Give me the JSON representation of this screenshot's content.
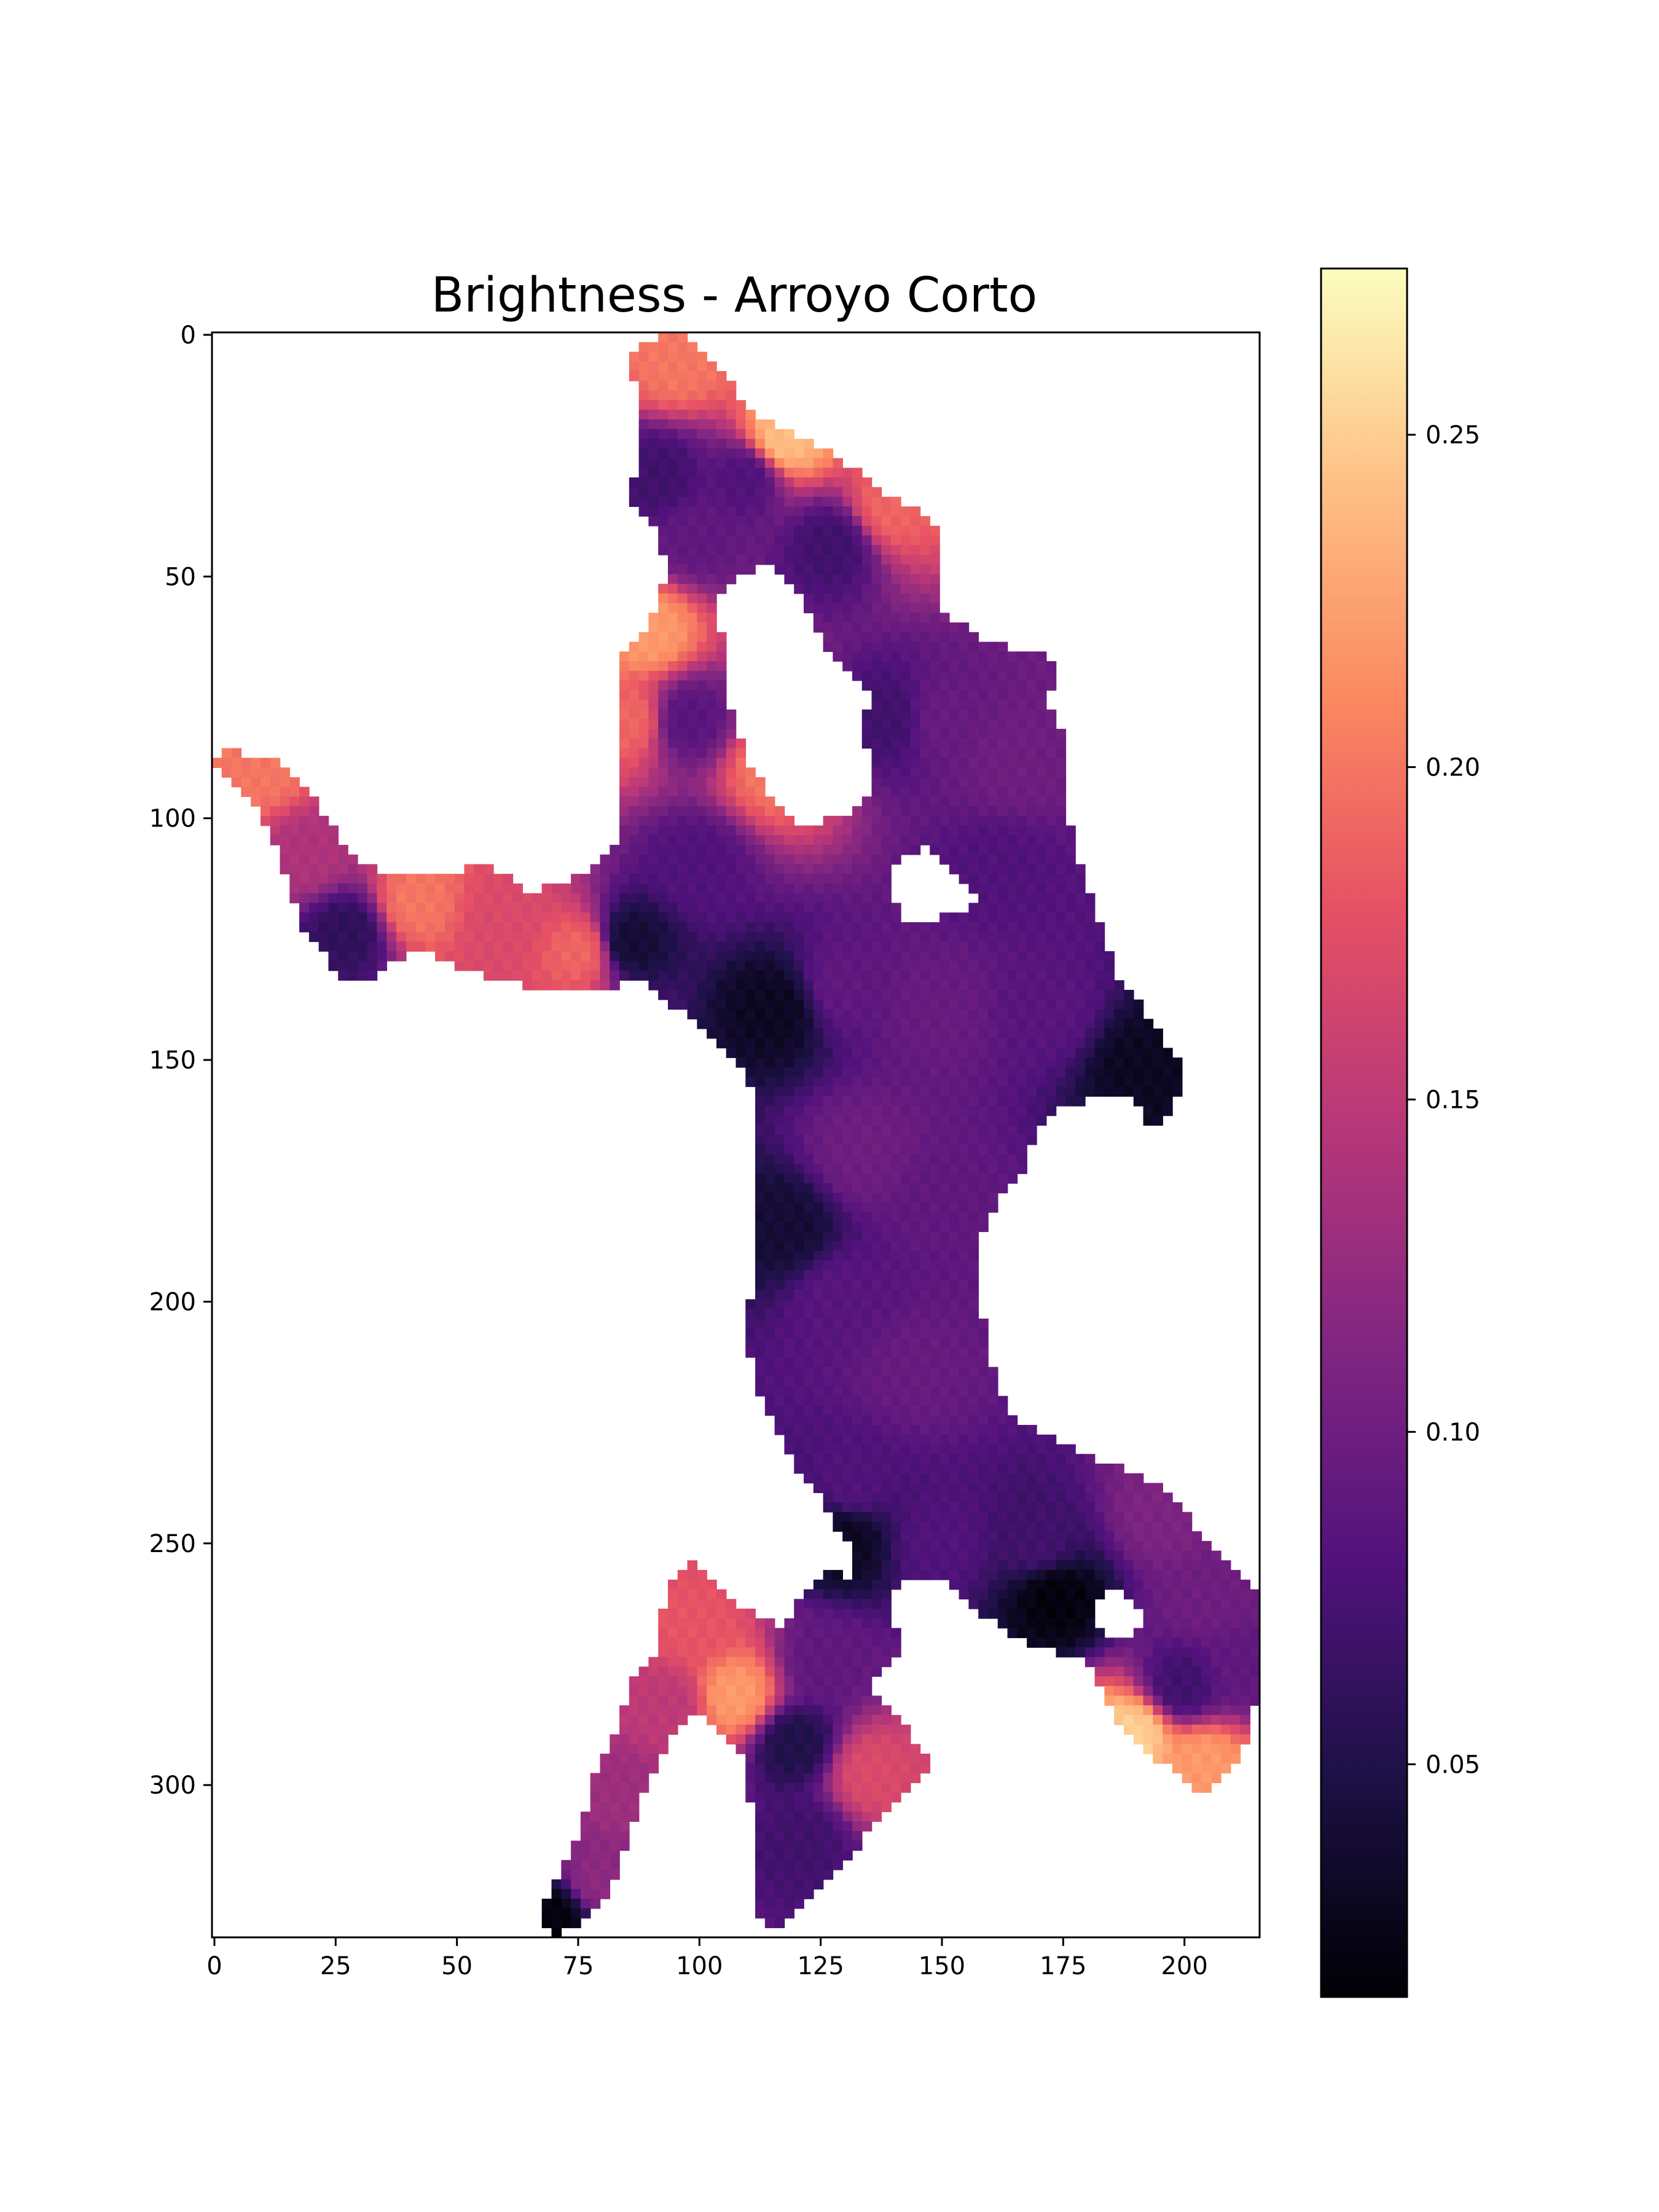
{
  "chart_data": {
    "type": "heatmap",
    "title": "Brightness - Arroyo Corto",
    "xlabel": "",
    "ylabel": "",
    "colormap": "magma",
    "grid": false,
    "xlim": [
      0,
      216
    ],
    "ylim": [
      332,
      0
    ],
    "x_ticks": [
      0,
      25,
      50,
      75,
      100,
      125,
      150,
      175,
      200
    ],
    "y_ticks": [
      0,
      50,
      100,
      150,
      200,
      250,
      300
    ],
    "colorbar": {
      "range": [
        0.015,
        0.275
      ],
      "ticks": [
        0.05,
        0.1,
        0.15,
        0.2,
        0.25
      ],
      "tick_labels": [
        "0.05",
        "0.10",
        "0.15",
        "0.20",
        "0.25"
      ],
      "position": "right"
    },
    "region_outline": [
      [
        86,
        5
      ],
      [
        92,
        1
      ],
      [
        98,
        0
      ],
      [
        104,
        6
      ],
      [
        108,
        12
      ],
      [
        113,
        18
      ],
      [
        118,
        20
      ],
      [
        126,
        24
      ],
      [
        132,
        28
      ],
      [
        140,
        34
      ],
      [
        148,
        38
      ],
      [
        151,
        46
      ],
      [
        151,
        58
      ],
      [
        160,
        64
      ],
      [
        170,
        66
      ],
      [
        175,
        68
      ],
      [
        172,
        76
      ],
      [
        175,
        82
      ],
      [
        176,
        96
      ],
      [
        178,
        108
      ],
      [
        182,
        118
      ],
      [
        184,
        124
      ],
      [
        187,
        134
      ],
      [
        192,
        140
      ],
      [
        196,
        146
      ],
      [
        199,
        150
      ],
      [
        200,
        156
      ],
      [
        198,
        162
      ],
      [
        193,
        164
      ],
      [
        190,
        158
      ],
      [
        186,
        158
      ],
      [
        176,
        160
      ],
      [
        170,
        164
      ],
      [
        168,
        172
      ],
      [
        163,
        178
      ],
      [
        159,
        186
      ],
      [
        158,
        196
      ],
      [
        159,
        204
      ],
      [
        161,
        214
      ],
      [
        164,
        224
      ],
      [
        172,
        228
      ],
      [
        180,
        232
      ],
      [
        190,
        236
      ],
      [
        198,
        240
      ],
      [
        202,
        246
      ],
      [
        206,
        252
      ],
      [
        212,
        256
      ],
      [
        216,
        262
      ],
      [
        216,
        280
      ],
      [
        213,
        292
      ],
      [
        208,
        300
      ],
      [
        203,
        302
      ],
      [
        196,
        296
      ],
      [
        190,
        292
      ],
      [
        185,
        284
      ],
      [
        180,
        274
      ],
      [
        170,
        272
      ],
      [
        160,
        266
      ],
      [
        152,
        258
      ],
      [
        142,
        258
      ],
      [
        140,
        262
      ],
      [
        142,
        272
      ],
      [
        136,
        280
      ],
      [
        144,
        290
      ],
      [
        148,
        296
      ],
      [
        144,
        302
      ],
      [
        138,
        306
      ],
      [
        134,
        312
      ],
      [
        128,
        320
      ],
      [
        120,
        328
      ],
      [
        116,
        332
      ],
      [
        112,
        326
      ],
      [
        112,
        310
      ],
      [
        110,
        296
      ],
      [
        105,
        290
      ],
      [
        100,
        286
      ],
      [
        94,
        292
      ],
      [
        90,
        300
      ],
      [
        86,
        312
      ],
      [
        82,
        322
      ],
      [
        76,
        330
      ],
      [
        70,
        332
      ],
      [
        68,
        326
      ],
      [
        72,
        318
      ],
      [
        76,
        310
      ],
      [
        78,
        302
      ],
      [
        80,
        296
      ],
      [
        84,
        288
      ],
      [
        86,
        280
      ],
      [
        92,
        272
      ],
      [
        94,
        258
      ],
      [
        100,
        254
      ],
      [
        104,
        258
      ],
      [
        110,
        264
      ],
      [
        118,
        268
      ],
      [
        124,
        258
      ],
      [
        128,
        256
      ],
      [
        132,
        258
      ],
      [
        133,
        254
      ],
      [
        128,
        246
      ],
      [
        124,
        238
      ],
      [
        120,
        234
      ],
      [
        116,
        226
      ],
      [
        112,
        218
      ],
      [
        110,
        206
      ],
      [
        112,
        196
      ],
      [
        112,
        182
      ],
      [
        112,
        168
      ],
      [
        112,
        160
      ],
      [
        110,
        152
      ],
      [
        104,
        146
      ],
      [
        96,
        140
      ],
      [
        88,
        134
      ],
      [
        82,
        136
      ],
      [
        70,
        136
      ],
      [
        60,
        134
      ],
      [
        52,
        132
      ],
      [
        44,
        128
      ],
      [
        38,
        130
      ],
      [
        32,
        134
      ],
      [
        28,
        134
      ],
      [
        24,
        130
      ],
      [
        18,
        122
      ],
      [
        16,
        114
      ],
      [
        12,
        104
      ],
      [
        8,
        96
      ],
      [
        0,
        90
      ],
      [
        2,
        86
      ],
      [
        12,
        88
      ],
      [
        18,
        92
      ],
      [
        22,
        98
      ],
      [
        26,
        104
      ],
      [
        32,
        110
      ],
      [
        38,
        112
      ],
      [
        50,
        112
      ],
      [
        56,
        110
      ],
      [
        62,
        112
      ],
      [
        66,
        116
      ],
      [
        72,
        114
      ],
      [
        78,
        112
      ],
      [
        84,
        106
      ],
      [
        84,
        98
      ],
      [
        85,
        84
      ],
      [
        84,
        70
      ],
      [
        86,
        64
      ],
      [
        90,
        62
      ],
      [
        92,
        56
      ],
      [
        94,
        48
      ],
      [
        92,
        42
      ],
      [
        86,
        34
      ],
      [
        88,
        26
      ],
      [
        88,
        14
      ]
    ],
    "hole_outlines": [
      [
        [
          104,
          56
        ],
        [
          106,
          52
        ],
        [
          110,
          50
        ],
        [
          114,
          48
        ],
        [
          118,
          50
        ],
        [
          122,
          56
        ],
        [
          126,
          64
        ],
        [
          130,
          70
        ],
        [
          136,
          74
        ],
        [
          134,
          82
        ],
        [
          136,
          88
        ],
        [
          136,
          96
        ],
        [
          130,
          100
        ],
        [
          122,
          102
        ],
        [
          118,
          100
        ],
        [
          114,
          94
        ],
        [
          110,
          88
        ],
        [
          107,
          78
        ],
        [
          106,
          68
        ]
      ],
      [
        [
          140,
          112
        ],
        [
          144,
          108
        ],
        [
          148,
          106
        ],
        [
          152,
          110
        ],
        [
          156,
          114
        ],
        [
          158,
          118
        ],
        [
          154,
          120
        ],
        [
          148,
          122
        ],
        [
          142,
          122
        ]
      ],
      [
        [
          182,
          262
        ],
        [
          186,
          260
        ],
        [
          190,
          262
        ],
        [
          192,
          266
        ],
        [
          189,
          270
        ],
        [
          184,
          270
        ],
        [
          181,
          266
        ]
      ]
    ],
    "intensity_samples": [
      {
        "x": 96,
        "y": 6,
        "value": 0.2
      },
      {
        "x": 118,
        "y": 22,
        "value": 0.24
      },
      {
        "x": 140,
        "y": 36,
        "value": 0.19
      },
      {
        "x": 92,
        "y": 30,
        "value": 0.07
      },
      {
        "x": 110,
        "y": 30,
        "value": 0.08
      },
      {
        "x": 100,
        "y": 42,
        "value": 0.09
      },
      {
        "x": 90,
        "y": 62,
        "value": 0.22
      },
      {
        "x": 86,
        "y": 80,
        "value": 0.19
      },
      {
        "x": 98,
        "y": 80,
        "value": 0.085
      },
      {
        "x": 116,
        "y": 90,
        "value": 0.2
      },
      {
        "x": 128,
        "y": 44,
        "value": 0.07
      },
      {
        "x": 140,
        "y": 80,
        "value": 0.07
      },
      {
        "x": 150,
        "y": 80,
        "value": 0.095
      },
      {
        "x": 165,
        "y": 90,
        "value": 0.1
      },
      {
        "x": 162,
        "y": 110,
        "value": 0.08
      },
      {
        "x": 10,
        "y": 90,
        "value": 0.2
      },
      {
        "x": 20,
        "y": 108,
        "value": 0.14
      },
      {
        "x": 28,
        "y": 124,
        "value": 0.06
      },
      {
        "x": 42,
        "y": 118,
        "value": 0.2
      },
      {
        "x": 60,
        "y": 122,
        "value": 0.17
      },
      {
        "x": 76,
        "y": 128,
        "value": 0.19
      },
      {
        "x": 86,
        "y": 126,
        "value": 0.04
      },
      {
        "x": 100,
        "y": 110,
        "value": 0.08
      },
      {
        "x": 116,
        "y": 140,
        "value": 0.03
      },
      {
        "x": 130,
        "y": 135,
        "value": 0.09
      },
      {
        "x": 150,
        "y": 140,
        "value": 0.095
      },
      {
        "x": 172,
        "y": 140,
        "value": 0.085
      },
      {
        "x": 192,
        "y": 152,
        "value": 0.03
      },
      {
        "x": 134,
        "y": 170,
        "value": 0.1
      },
      {
        "x": 150,
        "y": 180,
        "value": 0.09
      },
      {
        "x": 118,
        "y": 185,
        "value": 0.04
      },
      {
        "x": 130,
        "y": 200,
        "value": 0.085
      },
      {
        "x": 145,
        "y": 215,
        "value": 0.095
      },
      {
        "x": 132,
        "y": 238,
        "value": 0.08
      },
      {
        "x": 130,
        "y": 250,
        "value": 0.03
      },
      {
        "x": 150,
        "y": 250,
        "value": 0.08
      },
      {
        "x": 170,
        "y": 250,
        "value": 0.07
      },
      {
        "x": 174,
        "y": 262,
        "value": 0.02
      },
      {
        "x": 196,
        "y": 244,
        "value": 0.11
      },
      {
        "x": 206,
        "y": 262,
        "value": 0.1
      },
      {
        "x": 190,
        "y": 290,
        "value": 0.25
      },
      {
        "x": 204,
        "y": 296,
        "value": 0.22
      },
      {
        "x": 200,
        "y": 280,
        "value": 0.07
      },
      {
        "x": 212,
        "y": 276,
        "value": 0.09
      },
      {
        "x": 100,
        "y": 268,
        "value": 0.18
      },
      {
        "x": 108,
        "y": 282,
        "value": 0.22
      },
      {
        "x": 94,
        "y": 284,
        "value": 0.15
      },
      {
        "x": 120,
        "y": 292,
        "value": 0.05
      },
      {
        "x": 126,
        "y": 275,
        "value": 0.09
      },
      {
        "x": 136,
        "y": 298,
        "value": 0.17
      },
      {
        "x": 122,
        "y": 312,
        "value": 0.07
      },
      {
        "x": 84,
        "y": 302,
        "value": 0.13
      },
      {
        "x": 80,
        "y": 320,
        "value": 0.12
      },
      {
        "x": 70,
        "y": 328,
        "value": 0.02
      }
    ]
  }
}
